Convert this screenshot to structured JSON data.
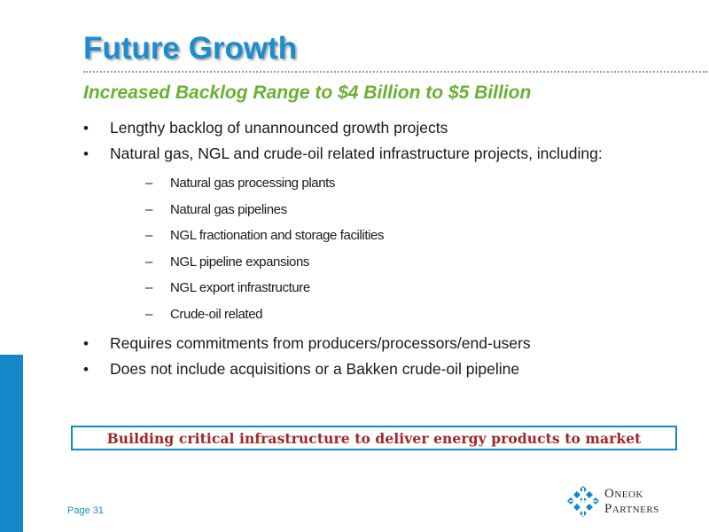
{
  "title": "Future Growth",
  "subtitle": "Increased Backlog Range to $4 Billion to $5 Billion",
  "bullet_symbol": "•",
  "sub_bullet_symbol": "–",
  "bullets": [
    {
      "text": "Lengthy backlog of unannounced growth projects"
    },
    {
      "text": "Natural gas, NGL and crude-oil related infrastructure projects, including:"
    },
    {
      "text": "Requires commitments from producers/processors/end-users"
    },
    {
      "text": "Does not include acquisitions or a Bakken crude-oil pipeline"
    }
  ],
  "sub_items": [
    "Natural gas processing plants",
    "Natural gas pipelines",
    "NGL fractionation and storage facilities",
    "NGL pipeline expansions",
    "NGL export infrastructure",
    "Crude-oil related"
  ],
  "tagline": "Building critical infrastructure to deliver energy products to market",
  "page_label": "Page 31",
  "logo": {
    "line1_cap": "O",
    "line1_rest": "NEOK",
    "line2_cap": "P",
    "line2_rest": "ARTNERS",
    "icon": "oneok-diamond-logo-icon"
  },
  "colors": {
    "title": "#1A8CCF",
    "subtitle": "#6BB033",
    "accent_bar": "#1487C8",
    "tagline_text": "#A0262A",
    "tagline_border": "#1487C8"
  }
}
